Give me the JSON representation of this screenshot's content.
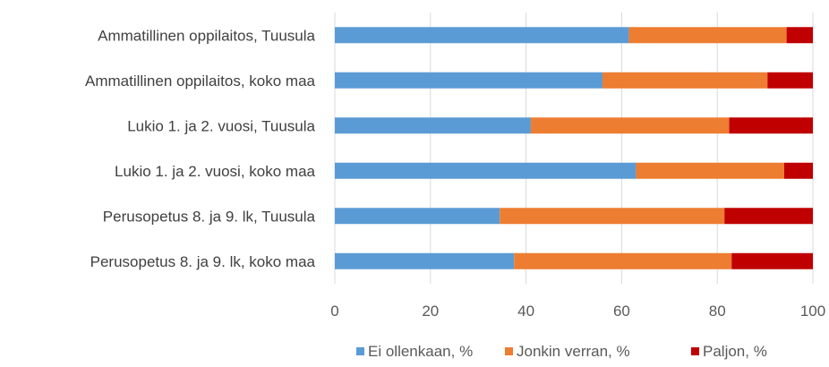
{
  "chart_data": {
    "type": "bar",
    "orientation": "horizontal",
    "stacked": true,
    "categories": [
      "Ammatillinen oppilaitos, Tuusula",
      "Ammatillinen oppilaitos, koko maa",
      "Lukio 1. ja 2. vuosi, Tuusula",
      "Lukio 1. ja 2. vuosi, koko maa",
      "Perusopetus 8. ja 9. lk, Tuusula",
      "Perusopetus 8. ja 9. lk, koko maa"
    ],
    "series": [
      {
        "name": "Ei ollenkaan, %",
        "color": "#5b9bd5",
        "values": [
          61.5,
          56,
          41,
          63,
          34.5,
          37.5
        ]
      },
      {
        "name": "Jonkin verran, %",
        "color": "#ed7d31",
        "values": [
          33,
          34.5,
          41.5,
          31,
          47,
          45.5
        ]
      },
      {
        "name": "Paljon, %",
        "color": "#c00000",
        "values": [
          5.5,
          9.5,
          17.5,
          6,
          18.5,
          17
        ]
      }
    ],
    "xlim": [
      0,
      100
    ],
    "xticks": [
      "0",
      "20",
      "40",
      "60",
      "80",
      "100"
    ],
    "grid": true,
    "legend_position": "bottom",
    "title": "",
    "xlabel": "",
    "ylabel": ""
  }
}
